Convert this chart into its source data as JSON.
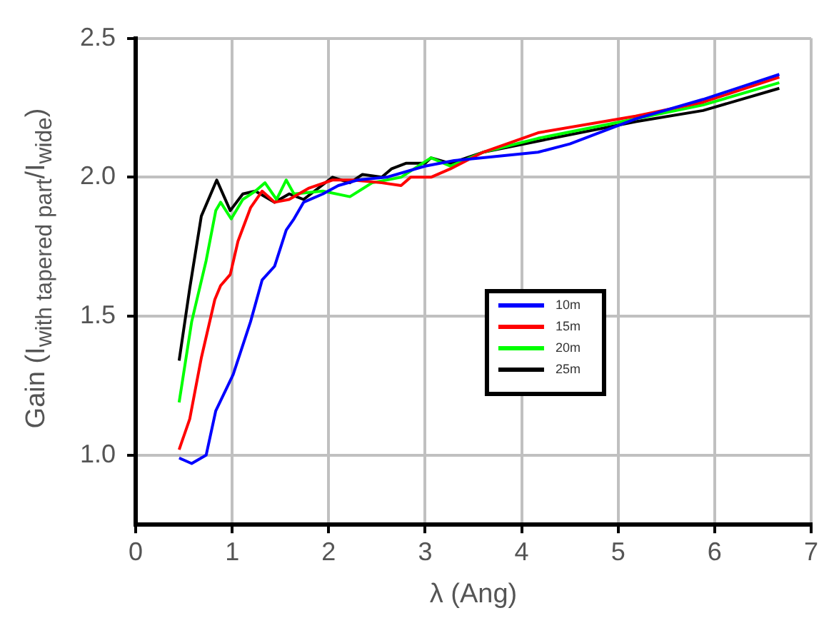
{
  "chart_data": {
    "type": "line",
    "xlabel": "λ (Ang)",
    "ylabel": "Gain (I$_{with tapered part}$/I$_{wide}$)",
    "xlim": [
      0,
      7
    ],
    "xticks": [
      0,
      1,
      2,
      3,
      4,
      5,
      6,
      7
    ],
    "ylim": [
      0.75,
      2.5
    ],
    "yticks": [
      {
        "value": 1,
        "label": "1.0"
      },
      {
        "value": 1.5,
        "label": "1.5"
      },
      {
        "value": 2,
        "label": "2.0"
      },
      {
        "value": 2.5,
        "label": "2.5"
      }
    ],
    "grid": true,
    "legend": "right",
    "marker": "none",
    "line_style": "solid",
    "series": [
      {
        "name": "10m",
        "color": "#0000ff",
        "x": [
          0.45,
          0.58,
          0.73,
          0.83,
          1.01,
          1.19,
          1.31,
          1.44,
          1.56,
          1.64,
          1.74,
          1.94,
          2.1,
          2.3,
          2.6,
          3.0,
          3.3,
          3.6,
          4.17,
          4.5,
          5.18,
          5.88,
          6.67
        ],
        "values": [
          0.99,
          0.97,
          1.0,
          1.16,
          1.29,
          1.48,
          1.63,
          1.68,
          1.81,
          1.85,
          1.91,
          1.94,
          1.97,
          1.99,
          2.0,
          2.04,
          2.06,
          2.07,
          2.09,
          2.12,
          2.21,
          2.28,
          2.37
        ]
      },
      {
        "name": "15m",
        "color": "#ff0000",
        "x": [
          0.45,
          0.56,
          0.68,
          0.82,
          0.88,
          0.98,
          1.06,
          1.19,
          1.31,
          1.44,
          1.59,
          1.79,
          2.04,
          2.25,
          2.55,
          2.75,
          2.85,
          3.06,
          3.26,
          3.6,
          4.17,
          5.18,
          5.88,
          6.67
        ],
        "values": [
          1.02,
          1.13,
          1.35,
          1.56,
          1.61,
          1.65,
          1.77,
          1.89,
          1.95,
          1.91,
          1.92,
          1.96,
          1.99,
          1.99,
          1.98,
          1.97,
          2.0,
          2.0,
          2.03,
          2.09,
          2.16,
          2.22,
          2.27,
          2.36
        ]
      },
      {
        "name": "20m",
        "color": "#00ff00",
        "x": [
          0.45,
          0.58,
          0.73,
          0.83,
          0.88,
          0.99,
          1.11,
          1.24,
          1.34,
          1.46,
          1.56,
          1.64,
          1.94,
          2.22,
          2.45,
          2.75,
          3.06,
          3.26,
          3.6,
          4.17,
          5.18,
          5.88,
          6.67
        ],
        "values": [
          1.19,
          1.48,
          1.7,
          1.88,
          1.91,
          1.85,
          1.92,
          1.95,
          1.98,
          1.92,
          1.99,
          1.94,
          1.95,
          1.93,
          1.98,
          2.0,
          2.07,
          2.04,
          2.09,
          2.14,
          2.21,
          2.26,
          2.34
        ]
      },
      {
        "name": "25m",
        "color": "#000000",
        "x": [
          0.45,
          0.56,
          0.68,
          0.84,
          0.98,
          1.11,
          1.24,
          1.44,
          1.59,
          1.74,
          2.04,
          2.22,
          2.35,
          2.55,
          2.65,
          2.8,
          3.0,
          3.06,
          3.26,
          3.6,
          4.17,
          5.18,
          5.88,
          6.67
        ],
        "values": [
          1.34,
          1.6,
          1.86,
          1.99,
          1.88,
          1.94,
          1.95,
          1.91,
          1.94,
          1.92,
          2.0,
          1.98,
          2.01,
          2.0,
          2.03,
          2.05,
          2.05,
          2.07,
          2.05,
          2.09,
          2.13,
          2.2,
          2.24,
          2.32
        ]
      }
    ]
  }
}
